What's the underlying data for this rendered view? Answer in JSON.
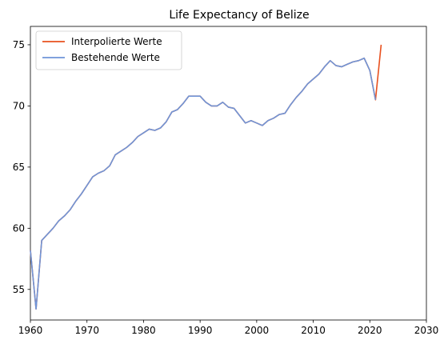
{
  "chart_data": {
    "type": "line",
    "title": "Life Expectancy of Belize",
    "xlabel": "",
    "ylabel": "",
    "xlim": [
      1960,
      2030
    ],
    "ylim": [
      52.5,
      76.5
    ],
    "xticks": [
      1960,
      1970,
      1980,
      1990,
      2000,
      2010,
      2020,
      2030
    ],
    "yticks": [
      55,
      60,
      65,
      70,
      75
    ],
    "grid": false,
    "legend_position": "top-left",
    "series": [
      {
        "name": "Interpolierte Werte",
        "color": "#e8501e",
        "x": [
          1960,
          1961,
          1962,
          1963,
          1964,
          1965,
          1966,
          1967,
          1968,
          1969,
          1970,
          1971,
          1972,
          1973,
          1974,
          1975,
          1976,
          1977,
          1978,
          1979,
          1980,
          1981,
          1982,
          1983,
          1984,
          1985,
          1986,
          1987,
          1988,
          1989,
          1990,
          1991,
          1992,
          1993,
          1994,
          1995,
          1996,
          1997,
          1998,
          1999,
          2000,
          2001,
          2002,
          2003,
          2004,
          2005,
          2006,
          2007,
          2008,
          2009,
          2010,
          2011,
          2012,
          2013,
          2014,
          2015,
          2016,
          2017,
          2018,
          2019,
          2020,
          2021,
          2022
        ],
        "y": [
          58.2,
          53.4,
          59.0,
          59.5,
          60.0,
          60.6,
          61.0,
          61.5,
          62.2,
          62.8,
          63.5,
          64.2,
          64.5,
          64.7,
          65.1,
          66.0,
          66.3,
          66.6,
          67.0,
          67.5,
          67.8,
          68.1,
          68.0,
          68.2,
          68.7,
          69.5,
          69.7,
          70.2,
          70.8,
          70.8,
          70.8,
          70.3,
          70.0,
          70.0,
          70.3,
          69.9,
          69.8,
          69.2,
          68.6,
          68.8,
          68.6,
          68.4,
          68.8,
          69.0,
          69.3,
          69.4,
          70.1,
          70.7,
          71.2,
          71.8,
          72.2,
          72.6,
          73.2,
          73.7,
          73.3,
          73.2,
          73.4,
          73.6,
          73.7,
          73.9,
          72.9,
          70.5,
          75.0
        ]
      },
      {
        "name": "Bestehende Werte",
        "color": "#6f95d8",
        "x": [
          1960,
          1961,
          1962,
          1963,
          1964,
          1965,
          1966,
          1967,
          1968,
          1969,
          1970,
          1971,
          1972,
          1973,
          1974,
          1975,
          1976,
          1977,
          1978,
          1979,
          1980,
          1981,
          1982,
          1983,
          1984,
          1985,
          1986,
          1987,
          1988,
          1989,
          1990,
          1991,
          1992,
          1993,
          1994,
          1995,
          1996,
          1997,
          1998,
          1999,
          2000,
          2001,
          2002,
          2003,
          2004,
          2005,
          2006,
          2007,
          2008,
          2009,
          2010,
          2011,
          2012,
          2013,
          2014,
          2015,
          2016,
          2017,
          2018,
          2019,
          2020,
          2021
        ],
        "y": [
          58.2,
          53.4,
          59.0,
          59.5,
          60.0,
          60.6,
          61.0,
          61.5,
          62.2,
          62.8,
          63.5,
          64.2,
          64.5,
          64.7,
          65.1,
          66.0,
          66.3,
          66.6,
          67.0,
          67.5,
          67.8,
          68.1,
          68.0,
          68.2,
          68.7,
          69.5,
          69.7,
          70.2,
          70.8,
          70.8,
          70.8,
          70.3,
          70.0,
          70.0,
          70.3,
          69.9,
          69.8,
          69.2,
          68.6,
          68.8,
          68.6,
          68.4,
          68.8,
          69.0,
          69.3,
          69.4,
          70.1,
          70.7,
          71.2,
          71.8,
          72.2,
          72.6,
          73.2,
          73.7,
          73.3,
          73.2,
          73.4,
          73.6,
          73.7,
          73.9,
          72.9,
          70.5
        ]
      }
    ]
  }
}
